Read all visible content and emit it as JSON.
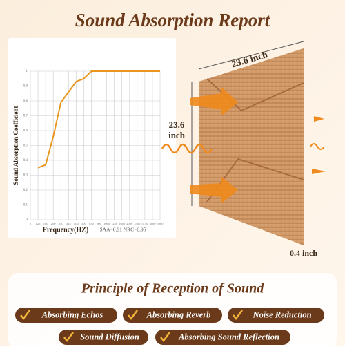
{
  "header": {
    "title": "Sound Absorption Report"
  },
  "chart_data": {
    "type": "line",
    "y_label": "Sound Absorption Coefficient",
    "x_label": "Frequency(HZ)",
    "note": "SAA=0.91 NRC=0.95",
    "categories": [
      "0",
      "125",
      "160",
      "200",
      "250",
      "315",
      "400",
      "500",
      "630",
      "800",
      "1000",
      "1250",
      "1600",
      "2000",
      "2500",
      "3150",
      "4000",
      "5000"
    ],
    "series": [
      {
        "name": "Absorption",
        "color": "#e8961e",
        "values": [
          null,
          0.35,
          0.37,
          0.56,
          0.79,
          0.86,
          0.93,
          0.95,
          1.0,
          1.0,
          1.0,
          1.0,
          1.0,
          1.0,
          1.0,
          1.0,
          1.0,
          1.0
        ]
      }
    ],
    "ylim": [
      0,
      1.0
    ],
    "yticks": [
      0,
      0.1,
      0.2,
      0.3,
      0.4,
      0.5,
      0.6,
      0.7,
      0.8,
      0.9,
      1.0
    ],
    "grid": true
  },
  "panel": {
    "width_label": "23.6 inch",
    "height_label": [
      "23.6",
      "inch"
    ],
    "depth_label": "0.4 inch"
  },
  "principle": {
    "title": "Principle of Reception of Sound",
    "items": [
      "Absorbing Echos",
      "Absorbing Reverb",
      "Noise Reduction",
      "Sound Diffusion",
      "Absorbing Sound Reflection"
    ]
  }
}
